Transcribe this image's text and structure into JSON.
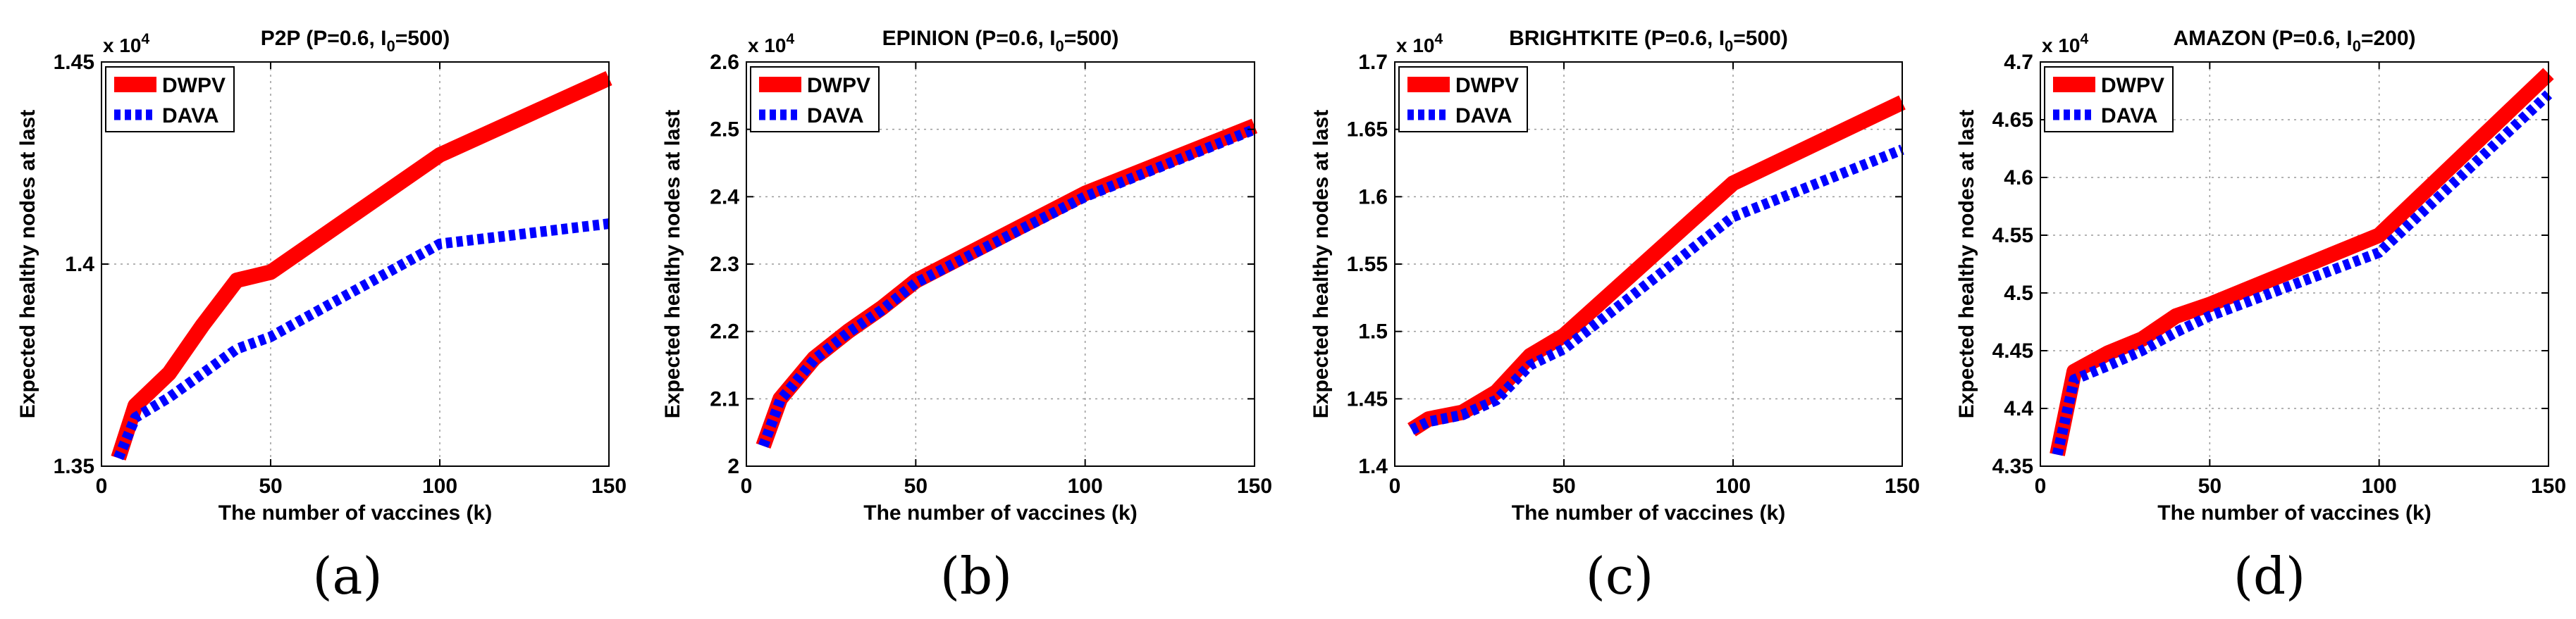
{
  "colors": {
    "dwpv": "#ff0000",
    "dava": "#0000ff",
    "grid": "#9a9a9a"
  },
  "chart_data": [
    {
      "type": "line",
      "panel_label": "(a)",
      "title": "P2P (P=0.6, I",
      "title_sub": "0",
      "title_end": "=500)",
      "xlabel": "The number of vaccines (k)",
      "ylabel": "Expected healthy nodes at last",
      "multiplier": "x 10",
      "multiplier_exp": "4",
      "xlim": [
        0,
        150
      ],
      "ylim": [
        1.35,
        1.45
      ],
      "xticks": [
        0,
        50,
        100,
        150
      ],
      "yticks": [
        1.35,
        1.4,
        1.45
      ],
      "ytick_labels": [
        "1.35",
        "1.4",
        "1.45"
      ],
      "grid": true,
      "legend_position": "top-left",
      "x": [
        5,
        10,
        20,
        30,
        40,
        50,
        100,
        150
      ],
      "series": [
        {
          "name": "DWPV",
          "values": [
            1.352,
            1.365,
            1.373,
            1.385,
            1.396,
            1.398,
            1.427,
            1.446
          ]
        },
        {
          "name": "DAVA",
          "values": [
            1.352,
            1.362,
            1.367,
            1.373,
            1.379,
            1.382,
            1.405,
            1.41
          ]
        }
      ]
    },
    {
      "type": "line",
      "panel_label": "(b)",
      "title": "EPINION (P=0.6, I",
      "title_sub": "0",
      "title_end": "=500)",
      "xlabel": "The number of vaccines (k)",
      "ylabel": "Expected healthy nodes at last",
      "multiplier": "x 10",
      "multiplier_exp": "4",
      "xlim": [
        0,
        150
      ],
      "ylim": [
        2.0,
        2.6
      ],
      "xticks": [
        0,
        50,
        100,
        150
      ],
      "yticks": [
        2.0,
        2.1,
        2.2,
        2.3,
        2.4,
        2.5,
        2.6
      ],
      "ytick_labels": [
        "2",
        "2.1",
        "2.2",
        "2.3",
        "2.4",
        "2.5",
        "2.6"
      ],
      "grid": true,
      "legend_position": "top-left",
      "x": [
        5,
        10,
        20,
        30,
        40,
        50,
        100,
        150
      ],
      "series": [
        {
          "name": "DWPV",
          "values": [
            2.03,
            2.1,
            2.16,
            2.2,
            2.235,
            2.275,
            2.405,
            2.505
          ]
        },
        {
          "name": "DAVA",
          "values": [
            2.03,
            2.098,
            2.158,
            2.198,
            2.232,
            2.272,
            2.4,
            2.5
          ]
        }
      ]
    },
    {
      "type": "line",
      "panel_label": "(c)",
      "title": "BRIGHTKITE (P=0.6, I",
      "title_sub": "0",
      "title_end": "=500)",
      "xlabel": "The number of vaccines (k)",
      "ylabel": "Expected healthy nodes at last",
      "multiplier": "x 10",
      "multiplier_exp": "4",
      "xlim": [
        0,
        150
      ],
      "ylim": [
        1.4,
        1.7
      ],
      "xticks": [
        0,
        50,
        100,
        150
      ],
      "yticks": [
        1.4,
        1.45,
        1.5,
        1.55,
        1.6,
        1.65,
        1.7
      ],
      "ytick_labels": [
        "1.4",
        "1.45",
        "1.5",
        "1.55",
        "1.6",
        "1.65",
        "1.7"
      ],
      "grid": true,
      "legend_position": "top-left",
      "x": [
        5,
        10,
        20,
        30,
        40,
        50,
        100,
        150
      ],
      "series": [
        {
          "name": "DWPV",
          "values": [
            1.427,
            1.435,
            1.44,
            1.455,
            1.482,
            1.497,
            1.61,
            1.67
          ]
        },
        {
          "name": "DAVA",
          "values": [
            1.427,
            1.433,
            1.438,
            1.449,
            1.475,
            1.487,
            1.585,
            1.635
          ]
        }
      ]
    },
    {
      "type": "line",
      "panel_label": "(d)",
      "title": "AMAZON (P=0.6, I",
      "title_sub": "0",
      "title_end": "=200)",
      "xlabel": "The number of vaccines (k)",
      "ylabel": "Expected healthy nodes at last",
      "multiplier": "x 10",
      "multiplier_exp": "4",
      "xlim": [
        0,
        150
      ],
      "ylim": [
        4.35,
        4.7
      ],
      "xticks": [
        0,
        50,
        100,
        150
      ],
      "yticks": [
        4.35,
        4.4,
        4.45,
        4.5,
        4.55,
        4.6,
        4.65,
        4.7
      ],
      "ytick_labels": [
        "4.35",
        "4.4",
        "4.45",
        "4.5",
        "4.55",
        "4.6",
        "4.65",
        "4.7"
      ],
      "grid": true,
      "legend_position": "top-left",
      "x": [
        5,
        10,
        20,
        30,
        40,
        50,
        100,
        150
      ],
      "series": [
        {
          "name": "DWPV",
          "values": [
            4.36,
            4.432,
            4.448,
            4.46,
            4.48,
            4.49,
            4.55,
            4.69
          ]
        },
        {
          "name": "DAVA",
          "values": [
            4.36,
            4.425,
            4.437,
            4.45,
            4.466,
            4.48,
            4.535,
            4.672
          ]
        }
      ]
    }
  ]
}
